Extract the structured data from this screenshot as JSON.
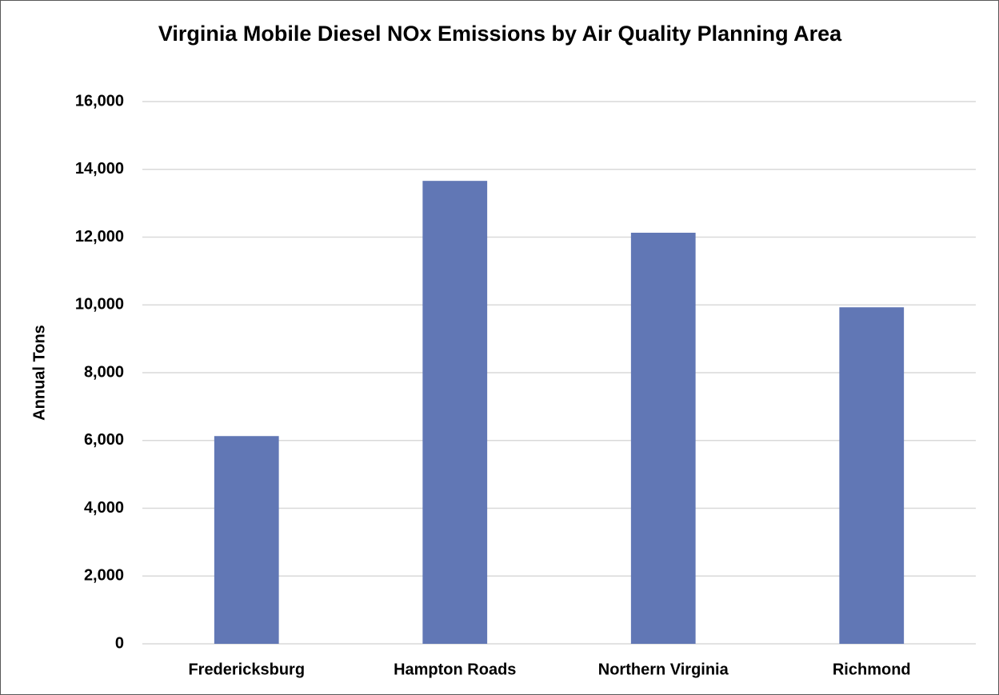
{
  "chart_data": {
    "type": "bar",
    "title": "Virginia Mobile Diesel NOx Emissions by Air Quality Planning Area",
    "y_label": "Annual Tons",
    "categories": [
      "Fredericksburg",
      "Hampton Roads",
      "Northern Virginia",
      "Richmond"
    ],
    "values": [
      6130,
      13660,
      12130,
      9930
    ],
    "color": "#6177b5",
    "ylim": [
      0,
      16000
    ],
    "yticks": [
      0,
      {
        "value": 2000,
        "label": "2,000"
      },
      {
        "value": 4000,
        "label": "4,000"
      },
      {
        "value": 6000,
        "label": "6,000"
      },
      {
        "value": 8000,
        "label": "8,000"
      },
      {
        "value": 10000,
        "label": "10,000"
      },
      {
        "value": 12000,
        "label": "12,000"
      },
      {
        "value": 14000,
        "label": "14,000"
      },
      {
        "value": 16000,
        "label": "16,000"
      }
    ],
    "grid": true
  }
}
